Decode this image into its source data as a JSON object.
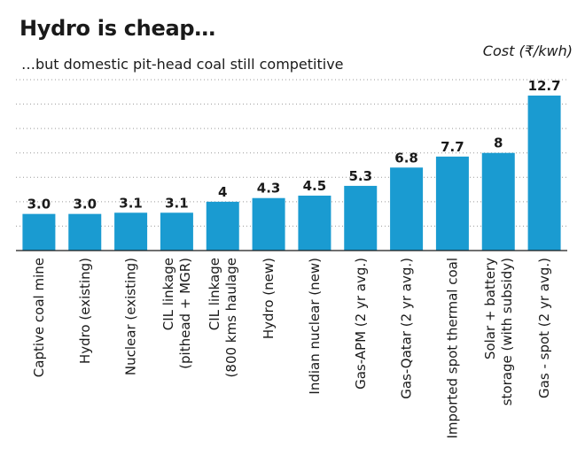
{
  "chart_data": {
    "type": "bar",
    "title": "Hydro is cheap…",
    "subtitle": "…but domestic pit-head coal still competitive",
    "ylabel": "Cost (₹/kwh)",
    "categories": [
      [
        "Captive coal mine"
      ],
      [
        "Hydro (existing)"
      ],
      [
        "Nuclear (existing)"
      ],
      [
        "CIL linkage",
        "(pithead + MGR)"
      ],
      [
        "CIL linkage",
        "(800 kms haulage"
      ],
      [
        "Hydro (new)"
      ],
      [
        "Indian nuclear (new)"
      ],
      [
        "Gas-APM (2 yr avg.)"
      ],
      [
        "Gas-Qatar (2 yr avg.)"
      ],
      [
        "Imported spot thermal coal"
      ],
      [
        "Solar + battery",
        "storage (with subsidy)"
      ],
      [
        "Gas - spot (2 yr avg.)"
      ]
    ],
    "values": [
      3.0,
      3.0,
      3.1,
      3.1,
      4,
      4.3,
      4.5,
      5.3,
      6.8,
      7.7,
      8,
      12.7
    ],
    "value_labels": [
      "3.0",
      "3.0",
      "3.1",
      "3.1",
      "4",
      "4.3",
      "4.5",
      "5.3",
      "6.8",
      "7.7",
      "8",
      "12.7"
    ],
    "ylim": [
      0,
      14
    ],
    "gridlines": [
      2,
      4,
      6,
      8,
      10,
      12,
      14
    ],
    "grid": "dotted horizontal",
    "bar_color": "#1a9bd1"
  }
}
